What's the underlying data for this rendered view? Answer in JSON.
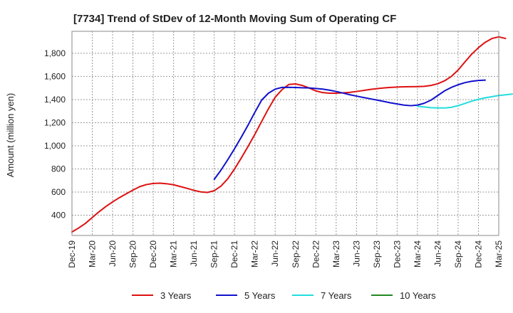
{
  "chart_data": {
    "type": "line",
    "title": "[7734]  Trend of StDev of 12-Month Moving Sum of Operating CF",
    "xlabel": "",
    "ylabel": "Amount (million yen)",
    "ylim": [
      225,
      1990
    ],
    "yticks": [
      400,
      600,
      800,
      1000,
      1200,
      1400,
      1600,
      1800
    ],
    "ytick_labels": [
      "400",
      "600",
      "800",
      "1,000",
      "1,200",
      "1,400",
      "1,600",
      "1,800"
    ],
    "x_start": "Dec-19",
    "x_end": "Mar-25",
    "x_tick_labels": [
      "Dec-19",
      "Mar-20",
      "Jun-20",
      "Sep-20",
      "Dec-20",
      "Mar-21",
      "Jun-21",
      "Sep-21",
      "Dec-21",
      "Mar-22",
      "Jun-22",
      "Sep-22",
      "Dec-22",
      "Mar-23",
      "Jun-23",
      "Sep-23",
      "Dec-23",
      "Mar-24",
      "Jun-24",
      "Sep-24",
      "Dec-24",
      "Mar-25"
    ],
    "grid": true,
    "legend_position": "bottom",
    "series": [
      {
        "name": "3 Years",
        "color": "#dd1111",
        "start_index": 0,
        "values": [
          255,
          290,
          330,
          380,
          430,
          475,
          515,
          552,
          585,
          617,
          647,
          665,
          675,
          677,
          672,
          663,
          648,
          632,
          615,
          602,
          597,
          612,
          652,
          715,
          800,
          895,
          995,
          1100,
          1210,
          1320,
          1420,
          1485,
          1530,
          1535,
          1522,
          1500,
          1475,
          1460,
          1455,
          1455,
          1458,
          1462,
          1470,
          1478,
          1487,
          1494,
          1500,
          1505,
          1508,
          1510,
          1511,
          1512,
          1514,
          1522,
          1537,
          1562,
          1600,
          1655,
          1725,
          1792,
          1848,
          1895,
          1928,
          1942,
          1928
        ]
      },
      {
        "name": "5 Years",
        "color": "#1111cc",
        "start_index": 21,
        "values": [
          710,
          790,
          880,
          975,
          1075,
          1180,
          1290,
          1395,
          1455,
          1490,
          1505,
          1506,
          1504,
          1502,
          1500,
          1496,
          1490,
          1481,
          1470,
          1456,
          1442,
          1430,
          1418,
          1407,
          1396,
          1384,
          1372,
          1362,
          1352,
          1347,
          1352,
          1368,
          1395,
          1435,
          1475,
          1505,
          1528,
          1546,
          1558,
          1565,
          1568
        ]
      },
      {
        "name": "7 Years",
        "color": "#22dddd",
        "start_index": 51,
        "values": [
          1342,
          1336,
          1330,
          1327,
          1327,
          1333,
          1347,
          1366,
          1386,
          1402,
          1415,
          1425,
          1435,
          1441,
          1447
        ]
      },
      {
        "name": "10 Years",
        "color": "#228822",
        "start_index": 0,
        "values": []
      }
    ]
  }
}
